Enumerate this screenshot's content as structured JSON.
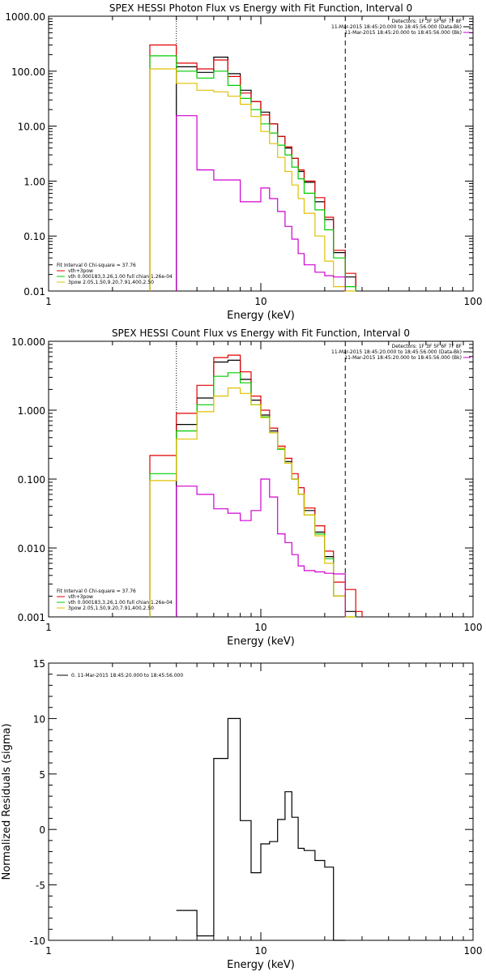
{
  "chart_data": [
    {
      "type": "step",
      "title": "SPEX HESSI Photon Flux vs Energy with Fit Function, Interval 0",
      "xlabel": "Energy (keV)",
      "ylabel": "",
      "xscale": "log",
      "yscale": "log",
      "xlim": [
        1,
        100
      ],
      "ylim": [
        0.01,
        1000
      ],
      "xticks": [
        "1",
        "10",
        "100"
      ],
      "yticks": [
        "0.01",
        "0.10",
        "1.00",
        "10.00",
        "100.00",
        "1000.00"
      ],
      "legend_top": [
        "Detectors: 1F 3F 5F 6F 7F 8F",
        "11-Mar-2015 18:45:20.000 to 18:45:56.000 (Data-Bk)",
        "11-Mar-2015 18:45:20.000 to 18:45:56.000 (Bk)"
      ],
      "legend_bottom": [
        "Fit Interval 0   Chi-square = 37.76",
        "vth+3pow",
        "vth 0.000183,3.26,1.00   full chian 1.26e-04",
        "3pow 2.05,1.50,9.20,7.91,400,2.50"
      ],
      "vlines": [
        4.0,
        25.0
      ],
      "edges": [
        3.0,
        4.0,
        5.0,
        6.0,
        7.0,
        8.0,
        9.0,
        10.0,
        11.0,
        12.0,
        13.0,
        14.0,
        15.0,
        16.0,
        18.0,
        20.0,
        22.0,
        25.0,
        28.0
      ],
      "series": [
        {
          "name": "11-Mar-2015 18:45:20.000 to 18:45:56.000 (Data-Bk)",
          "color": "#000000",
          "values": [
            0,
            120,
            95,
            180,
            90,
            45,
            28,
            18,
            11,
            6.5,
            4.0,
            2.6,
            1.5,
            0.95,
            0.42,
            0.2,
            0.05,
            0.018
          ]
        },
        {
          "name": "vth+3pow",
          "color": "#e00000",
          "values": [
            300,
            140,
            110,
            160,
            80,
            40,
            28,
            16,
            11,
            6.5,
            4.2,
            2.6,
            1.6,
            1.0,
            0.5,
            0.22,
            0.055,
            0.021
          ]
        },
        {
          "name": "vth",
          "color": "#00cc00",
          "values": [
            190,
            100,
            75,
            100,
            55,
            32,
            20,
            11,
            7.5,
            4.5,
            3.0,
            1.8,
            1.1,
            0.6,
            0.3,
            0.13,
            0.04,
            0.012
          ]
        },
        {
          "name": "3pow",
          "color": "#e0c000",
          "values": [
            110,
            60,
            45,
            42,
            35,
            25,
            15,
            8,
            4.8,
            2.7,
            1.5,
            0.85,
            0.48,
            0.26,
            0.1,
            0.035,
            0.012,
            0.008
          ]
        },
        {
          "name": "11-Mar-2015 18:45:20.000 to 18:45:56.000 (Bk)",
          "color": "#d000d0",
          "values": [
            0,
            15.5,
            1.6,
            1.05,
            1.05,
            0.42,
            0.42,
            0.75,
            0.48,
            0.28,
            0.15,
            0.088,
            0.048,
            0.03,
            0.022,
            0.019,
            0.018,
            0
          ]
        }
      ]
    },
    {
      "type": "step",
      "title": "SPEX HESSI Count Flux vs Energy with Fit Function, Interval 0",
      "xlabel": "Energy (keV)",
      "ylabel": "",
      "xscale": "log",
      "yscale": "log",
      "xlim": [
        1,
        100
      ],
      "ylim": [
        0.001,
        10
      ],
      "xticks": [
        "1",
        "10",
        "100"
      ],
      "yticks": [
        "0.001",
        "0.010",
        "0.100",
        "1.000",
        "10.000"
      ],
      "legend_top": [
        "Detectors: 1F 3F 5F 6F 7F 8F",
        "11-Mar-2015 18:45:20.000 to 18:45:56.000 (Data-Bk)",
        "11-Mar-2015 18:45:20.000 to 18:45:56.000 (Bk)"
      ],
      "legend_bottom": [
        "Fit Interval 0   Chi-square = 37.76",
        "vth+3pow",
        "vth 0.000183,3.26,1.00   full chian 1.26e-04",
        "3pow 2.05,1.50,9.20,7.91,400,2.50"
      ],
      "vlines": [
        4.0,
        25.0
      ],
      "edges": [
        3.0,
        4.0,
        5.0,
        6.0,
        7.0,
        8.0,
        9.0,
        10.0,
        11.0,
        12.0,
        13.0,
        14.0,
        15.0,
        16.0,
        18.0,
        20.0,
        22.0,
        25.0,
        28.0,
        30.0
      ],
      "series": [
        {
          "name": "11-Mar-2015 18:45:20.000 to 18:45:56.000 (Data-Bk)",
          "color": "#000000",
          "values": [
            0,
            0.62,
            1.5,
            5.0,
            5.3,
            2.8,
            1.4,
            0.85,
            0.5,
            0.28,
            0.18,
            0.1,
            0.06,
            0.035,
            0.017,
            0.0075,
            0.002,
            0.0012,
            0
          ]
        },
        {
          "name": "vth+3pow",
          "color": "#e00000",
          "values": [
            0.22,
            0.9,
            2.3,
            5.8,
            6.3,
            3.6,
            1.6,
            1.0,
            0.55,
            0.3,
            0.2,
            0.12,
            0.075,
            0.038,
            0.021,
            0.009,
            0.0032,
            0.0025,
            0.0012
          ]
        },
        {
          "name": "vth",
          "color": "#00cc00",
          "values": [
            0.12,
            0.5,
            1.2,
            3.1,
            3.5,
            2.5,
            1.2,
            0.8,
            0.47,
            0.27,
            0.17,
            0.1,
            0.06,
            0.03,
            0.016,
            0.007,
            0.002,
            0.001,
            0
          ]
        },
        {
          "name": "3pow",
          "color": "#e0c000",
          "values": [
            0.095,
            0.38,
            0.95,
            1.6,
            2.1,
            1.75,
            1.2,
            0.78,
            0.47,
            0.28,
            0.17,
            0.1,
            0.06,
            0.03,
            0.015,
            0.006,
            0.002,
            0.0008,
            0
          ]
        },
        {
          "name": "11-Mar-2015 18:45:20.000 to 18:45:56.000 (Bk)",
          "color": "#d000d0",
          "values": [
            0,
            0.079,
            0.06,
            0.037,
            0.032,
            0.025,
            0.035,
            0.1,
            0.055,
            0.016,
            0.012,
            0.008,
            0.0055,
            0.0047,
            0.0045,
            0.0043,
            0.0042,
            0,
            0
          ]
        }
      ]
    },
    {
      "type": "step",
      "title": "",
      "xlabel": "Energy (keV)",
      "ylabel": "Normalized Residuals (sigma)",
      "xscale": "log",
      "yscale": "linear",
      "xlim": [
        1,
        100
      ],
      "ylim": [
        -10,
        15
      ],
      "xticks": [
        "1",
        "10",
        "100"
      ],
      "yticks": [
        "-10",
        "-5",
        "0",
        "5",
        "10",
        "15"
      ],
      "legend_top": [
        "0. 11-Mar-2015 18:45:20.000 to 18:45:56.000"
      ],
      "edges": [
        4.0,
        5.0,
        6.0,
        7.0,
        8.0,
        9.0,
        10.0,
        11.0,
        12.0,
        13.0,
        14.0,
        15.0,
        16.0,
        18.0,
        20.0,
        22.0,
        25.0
      ],
      "series": [
        {
          "name": "0. 11-Mar-2015 18:45:20.000 to 18:45:56.000",
          "color": "#000000",
          "values": [
            -7.3,
            -9.6,
            6.4,
            10.0,
            0.8,
            -3.9,
            -1.3,
            -1.1,
            0.9,
            3.4,
            1.1,
            -1.7,
            -1.9,
            -2.8,
            -3.4,
            -10.0
          ]
        }
      ]
    }
  ]
}
